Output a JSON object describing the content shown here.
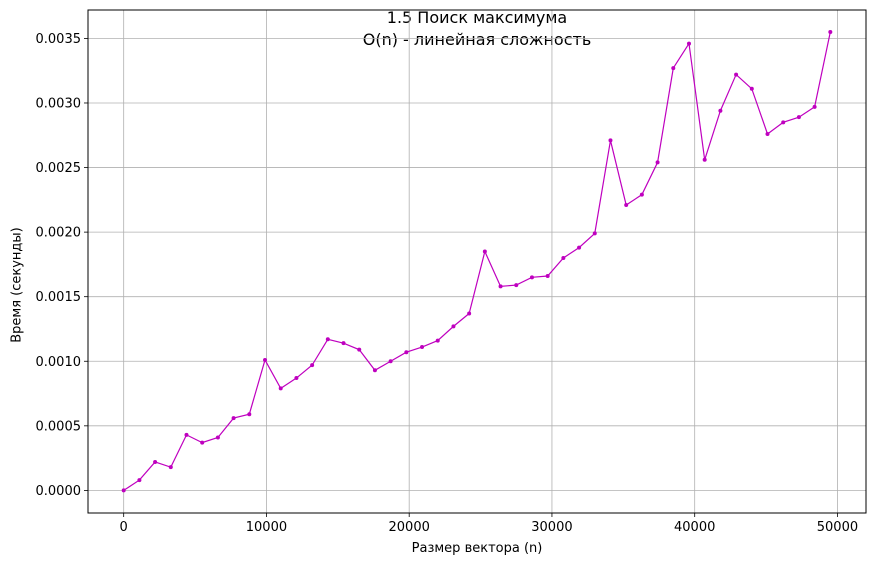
{
  "chart_data": {
    "type": "line",
    "title": "1.5 Поиск максимума",
    "subtitle": "O(n) - линейная сложность",
    "xlabel": "Размер вектора (n)",
    "ylabel": "Время (секунды)",
    "xlim": [
      -2500,
      52000
    ],
    "ylim": [
      -0.000175,
      0.00372
    ],
    "xticks": [
      0,
      10000,
      20000,
      30000,
      40000,
      50000
    ],
    "yticks": [
      0.0,
      0.0005,
      0.001,
      0.0015,
      0.002,
      0.0025,
      0.003,
      0.0035
    ],
    "xtick_labels": [
      "0",
      "10000",
      "20000",
      "30000",
      "40000",
      "50000"
    ],
    "ytick_labels": [
      "0.0000",
      "0.0005",
      "0.0010",
      "0.0015",
      "0.0020",
      "0.0025",
      "0.0030",
      "0.0035"
    ],
    "grid": true,
    "color": "#bf00bf",
    "series": [
      {
        "x": [
          0,
          1100,
          2200,
          3300,
          4400,
          5500,
          6600,
          7700,
          8800,
          9900,
          11000,
          12100,
          13200,
          14300,
          15400,
          16500,
          17600,
          18700,
          19800,
          20900,
          22000,
          23100,
          24200,
          25300,
          26400,
          27500,
          28600,
          29700,
          30800,
          31900,
          33000,
          34100,
          35200,
          36300,
          37400,
          38500,
          39600,
          40700,
          41800,
          42900,
          44000,
          45100,
          46200,
          47300,
          48400,
          49500
        ],
        "values": [
          0.0,
          8e-05,
          0.00022,
          0.00018,
          0.00043,
          0.00037,
          0.00041,
          0.00056,
          0.00059,
          0.00101,
          0.00079,
          0.00087,
          0.00097,
          0.00117,
          0.00114,
          0.00109,
          0.00093,
          0.001,
          0.00107,
          0.00111,
          0.00116,
          0.00127,
          0.00137,
          0.00185,
          0.00158,
          0.00159,
          0.00165,
          0.00166,
          0.0018,
          0.00188,
          0.00199,
          0.00271,
          0.00221,
          0.00229,
          0.00254,
          0.00327,
          0.00346,
          0.00256,
          0.00294,
          0.00322,
          0.00311,
          0.00276,
          0.00285,
          0.00289,
          0.00297,
          0.00355
        ]
      }
    ]
  }
}
